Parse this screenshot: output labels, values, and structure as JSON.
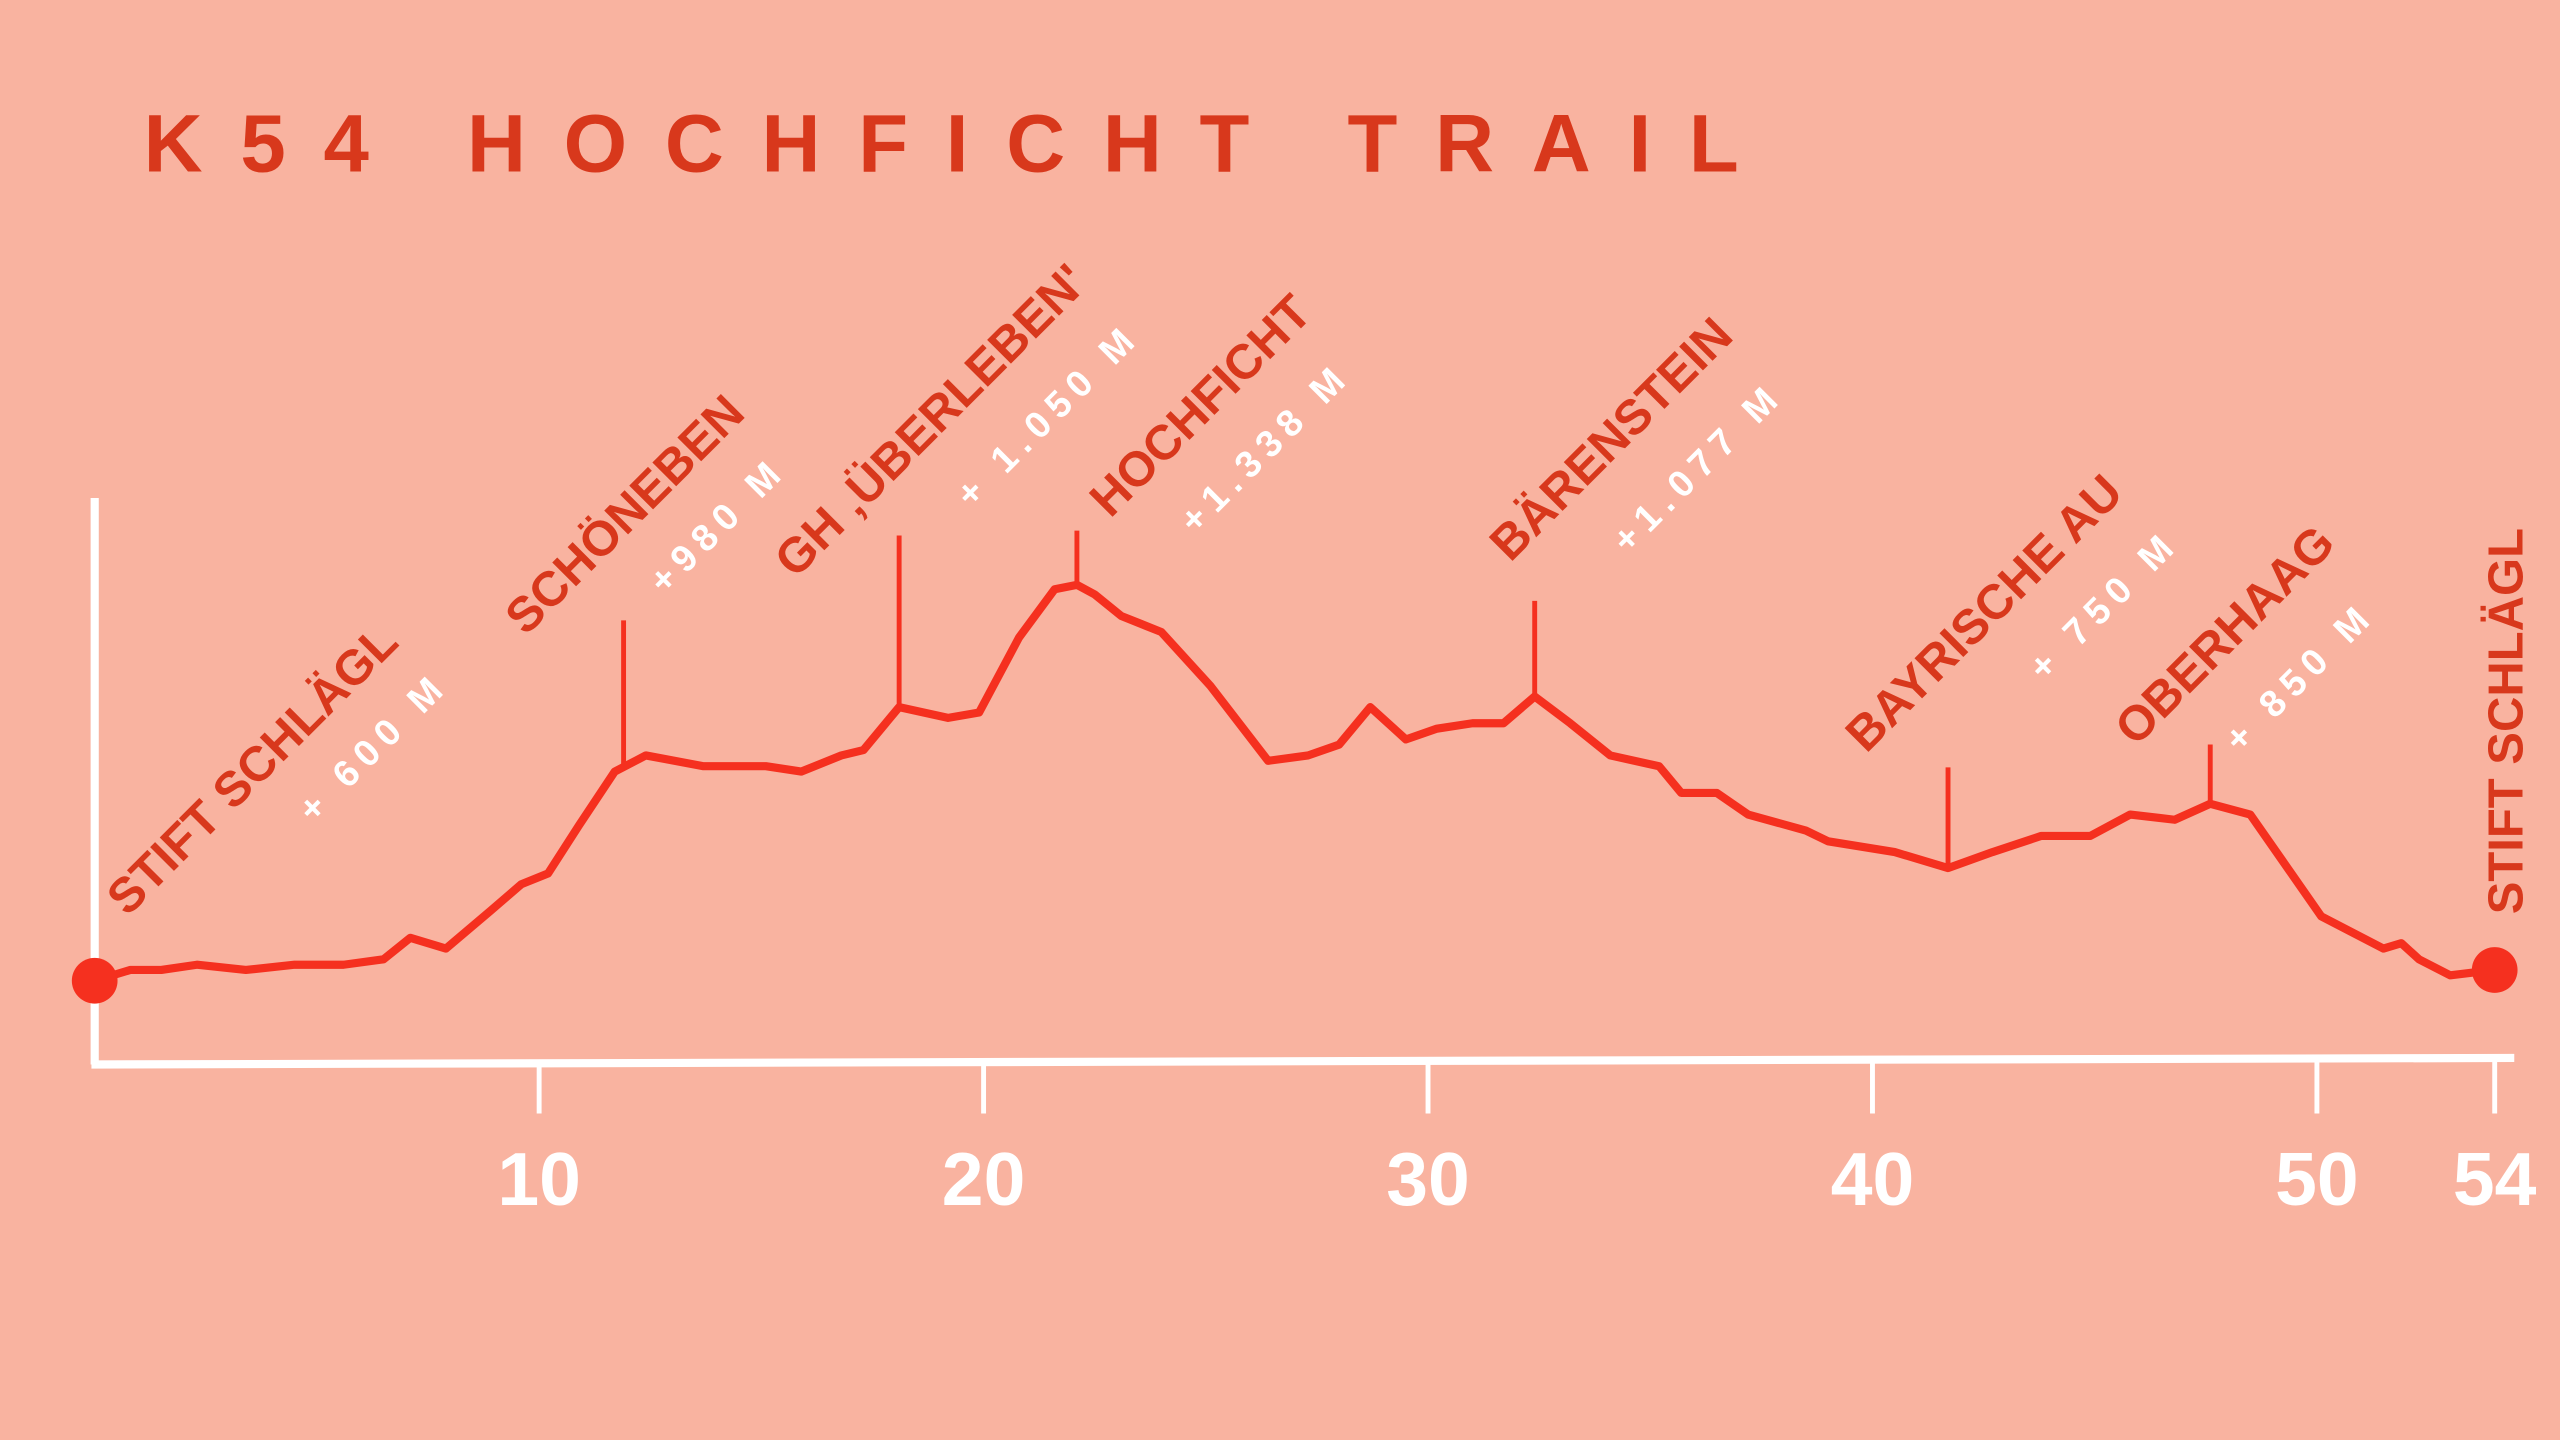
{
  "chart_data": {
    "type": "line",
    "title": "K54 HOCHFICHT TRAIL",
    "x": [
      0,
      0.8,
      1.5,
      2.3,
      3.4,
      4.5,
      5.6,
      6.5,
      7.1,
      7.9,
      8.9,
      9.6,
      10.2,
      10.9,
      11.7,
      12.4,
      13.7,
      15.1,
      15.9,
      16.8,
      17.3,
      18.1,
      19.2,
      19.9,
      20.8,
      21.6,
      22.1,
      22.5,
      23.1,
      24.0,
      25.1,
      26.4,
      27.3,
      28.0,
      28.7,
      29.5,
      30.2,
      31.0,
      31.7,
      32.4,
      33.2,
      34.1,
      35.2,
      35.7,
      36.5,
      37.2,
      38.5,
      39.0,
      40.5,
      41.7,
      42.7,
      43.8,
      44.9,
      45.8,
      46.8,
      47.6,
      48.5,
      50.1,
      51.5,
      51.9,
      52.3,
      53.0,
      54.0
    ],
    "values": [
      600,
      620,
      620,
      630,
      620,
      630,
      630,
      640,
      680,
      660,
      730,
      780,
      800,
      890,
      990,
      1020,
      1000,
      1000,
      990,
      1020,
      1030,
      1110,
      1090,
      1100,
      1240,
      1330,
      1338,
      1320,
      1280,
      1250,
      1150,
      1010,
      1020,
      1040,
      1110,
      1050,
      1070,
      1080,
      1080,
      1130,
      1080,
      1020,
      1000,
      950,
      950,
      910,
      880,
      860,
      840,
      810,
      840,
      870,
      870,
      910,
      900,
      930,
      910,
      720,
      660,
      670,
      640,
      610,
      620
    ],
    "color": "#f5301f",
    "xlim": [
      0,
      54
    ],
    "xticks": [
      10,
      20,
      30,
      40,
      50,
      54
    ],
    "ylim": [
      450,
      1500
    ],
    "annotations": [
      {
        "label": "STIFT SCHLÄGL",
        "elevation": "+ 600 M"
      },
      {
        "label": "SCHÖNEBEN",
        "elevation": "+980 M",
        "x": 11.9
      },
      {
        "label": "GH ‚ÜBERLEBEN'",
        "elevation": "+ 1.050 M",
        "x": 18.1
      },
      {
        "label": "HOCHFICHT",
        "elevation": "+1.338 M",
        "x": 22.1
      },
      {
        "label": "BÄRENSTEIN",
        "elevation": "+1.077 M",
        "x": 32.4
      },
      {
        "label": "BAYRISCHE AU",
        "elevation": "+ 750 M",
        "x": 41.7
      },
      {
        "label": "OBERHAAG",
        "elevation": "+ 850 M",
        "x": 47.6
      },
      {
        "label": "STIFT SCHLÄGL"
      }
    ]
  }
}
